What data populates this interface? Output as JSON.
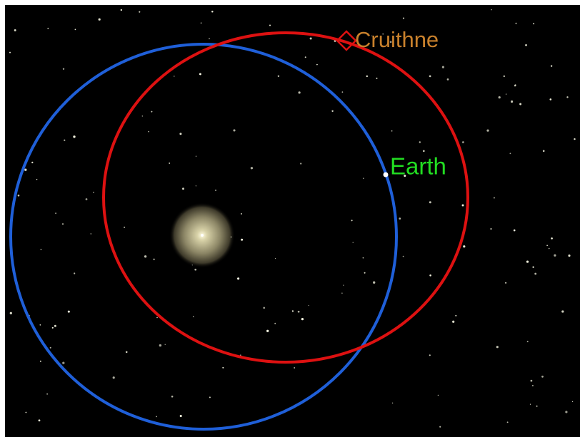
{
  "labels": {
    "asteroid": "Cruithne",
    "planet": "Earth"
  }
}
